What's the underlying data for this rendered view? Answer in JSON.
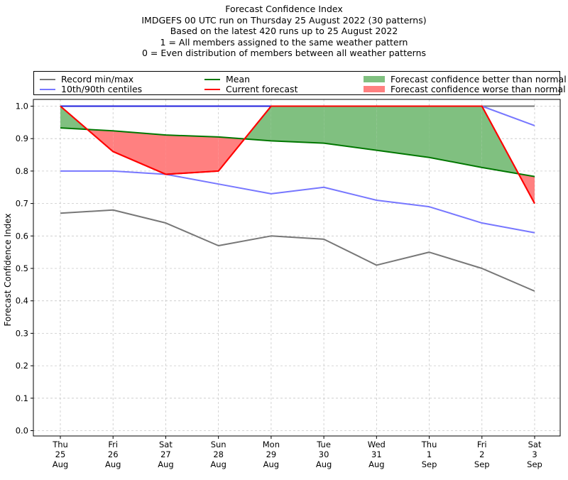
{
  "title_lines": [
    "Forecast Confidence Index",
    "IMDGEFS 00 UTC run on Thursday 25 August 2022 (30 patterns)",
    "Based on the latest 420 runs up to 25 August 2022",
    "1 = All members assigned to the same weather pattern",
    "0 = Even distribution of members between all weather patterns"
  ],
  "legend": {
    "record": "Record min/max",
    "centiles": "10th/90th centiles",
    "mean": "Mean",
    "current": "Current forecast",
    "better": "Forecast confidence better than normal",
    "worse": "Forecast confidence worse than normal"
  },
  "colors": {
    "record": "#777777",
    "centiles": "#7777ff",
    "mean": "#007700",
    "current": "#ff0000",
    "better": "#80c080",
    "worse": "#ff8080",
    "max_blue": "#2020dd"
  },
  "chart_data": {
    "type": "line",
    "ylabel": "Forecast Confidence Index",
    "ylim": [
      0.0,
      1.0
    ],
    "yticks": [
      "0.0",
      "0.1",
      "0.2",
      "0.3",
      "0.4",
      "0.5",
      "0.6",
      "0.7",
      "0.8",
      "0.9",
      "1.0"
    ],
    "grid": true,
    "legend_position": "top",
    "categories": [
      [
        "Thu",
        "25",
        "Aug"
      ],
      [
        "Fri",
        "26",
        "Aug"
      ],
      [
        "Sat",
        "27",
        "Aug"
      ],
      [
        "Sun",
        "28",
        "Aug"
      ],
      [
        "Mon",
        "29",
        "Aug"
      ],
      [
        "Tue",
        "30",
        "Aug"
      ],
      [
        "Wed",
        "31",
        "Aug"
      ],
      [
        "Thu",
        "1",
        "Sep"
      ],
      [
        "Fri",
        "2",
        "Sep"
      ],
      [
        "Sat",
        "3",
        "Sep"
      ]
    ],
    "series": [
      {
        "name": "Record min/max",
        "key": "record_min",
        "values": [
          0.67,
          0.68,
          0.64,
          0.57,
          0.6,
          0.59,
          0.51,
          0.55,
          0.5,
          0.43
        ]
      },
      {
        "name": "Record min/max",
        "key": "record_max",
        "values": [
          1.0,
          1.0,
          1.0,
          1.0,
          1.0,
          1.0,
          1.0,
          1.0,
          1.0,
          1.0
        ]
      },
      {
        "name": "10th/90th centiles",
        "key": "p10",
        "values": [
          0.8,
          0.8,
          0.79,
          0.76,
          0.73,
          0.75,
          0.71,
          0.69,
          0.64,
          0.61
        ]
      },
      {
        "name": "10th/90th centiles",
        "key": "p90",
        "values": [
          1.0,
          1.0,
          1.0,
          1.0,
          1.0,
          1.0,
          1.0,
          1.0,
          1.0,
          0.94
        ]
      },
      {
        "name": "Mean",
        "key": "mean",
        "values": [
          0.933,
          0.924,
          0.911,
          0.905,
          0.893,
          0.886,
          0.864,
          0.842,
          0.811,
          0.783
        ]
      },
      {
        "name": "Current forecast",
        "key": "current",
        "values": [
          1.0,
          0.86,
          0.79,
          0.8,
          1.0,
          1.0,
          1.0,
          1.0,
          1.0,
          0.7
        ]
      }
    ]
  }
}
